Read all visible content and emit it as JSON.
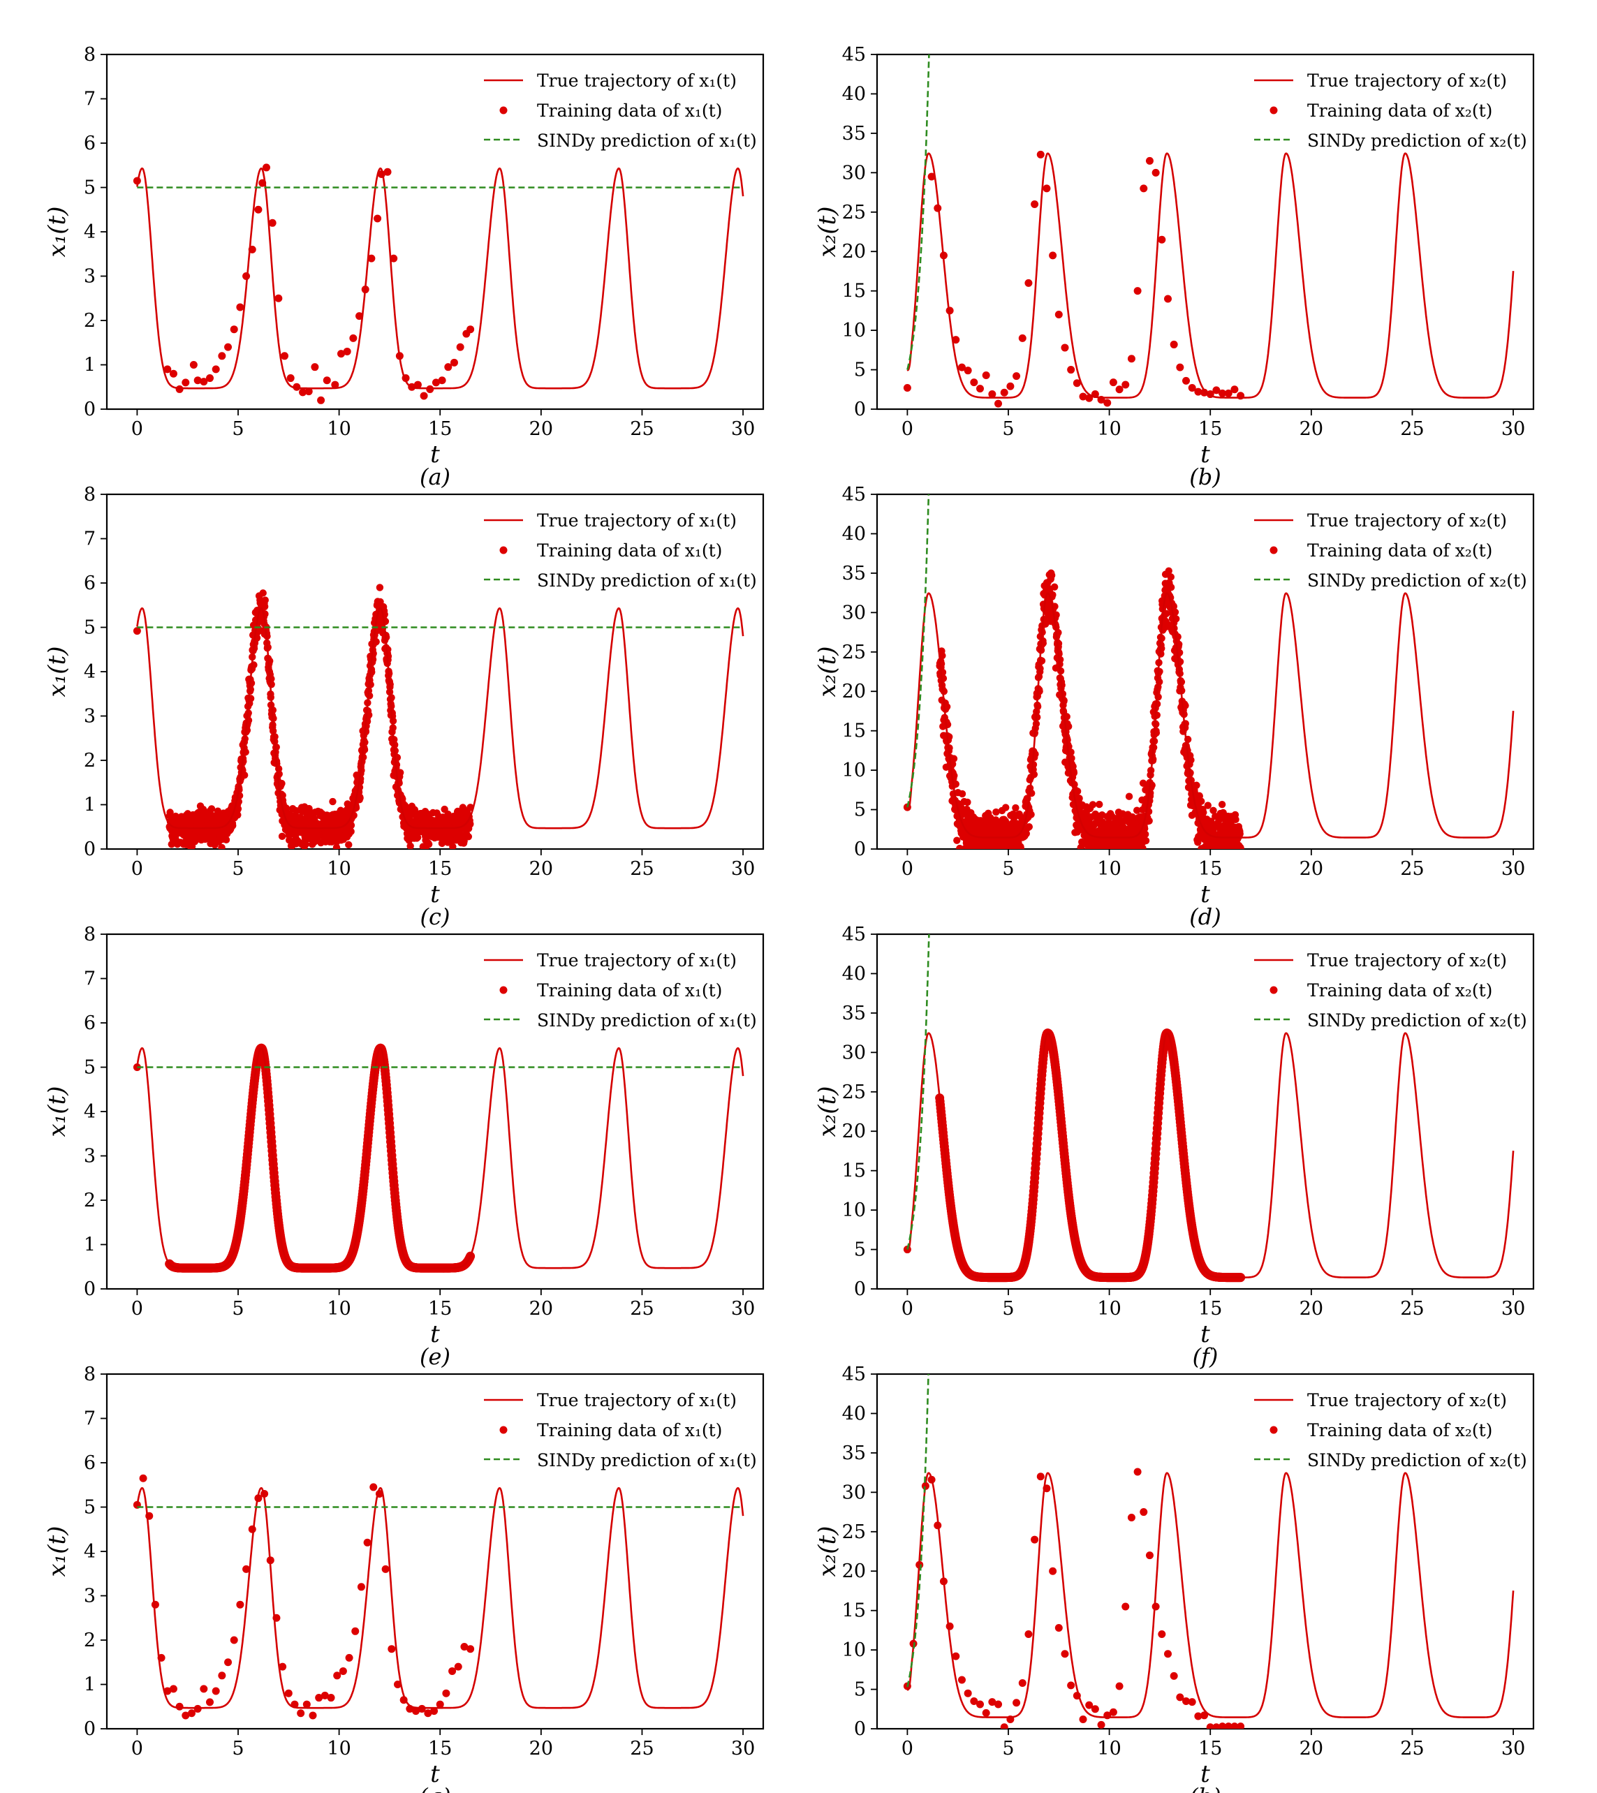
{
  "figure": {
    "subplot_rows": 4,
    "subplot_cols": 2
  },
  "colors": {
    "true": "#d40000",
    "train": "#dd0000",
    "sindy": "#2e8b1f",
    "axis": "#000000"
  },
  "chart_data": [
    {
      "id": "a",
      "caption": "(a)",
      "type": "line",
      "var": "x1",
      "xlabel": "t",
      "ylabel": "x₁(t)",
      "xlim": [
        -1.5,
        31
      ],
      "ylim": [
        0,
        8
      ],
      "xticks": [
        0,
        5,
        10,
        15,
        20,
        25,
        30
      ],
      "yticks": [
        0,
        1,
        2,
        3,
        4,
        5,
        6,
        7,
        8
      ],
      "legend": [
        "True trajectory of x₁(t)",
        "Training data of x₁(t)",
        "SINDy prediction of x₁(t)"
      ],
      "train_style": "sparse",
      "sindy": {
        "kind": "flat",
        "value": 5.0
      },
      "training_data": {
        "t": [
          0,
          1.5,
          1.8,
          2.1,
          2.4,
          2.8,
          3.0,
          3.3,
          3.6,
          3.9,
          4.2,
          4.5,
          4.8,
          5.1,
          5.4,
          5.7,
          6.0,
          6.2,
          6.4,
          6.7,
          7.0,
          7.3,
          7.6,
          7.9,
          8.2,
          8.5,
          8.8,
          9.1,
          9.4,
          9.8,
          10.1,
          10.4,
          10.7,
          11.0,
          11.3,
          11.6,
          11.9,
          12.1,
          12.4,
          12.7,
          13.0,
          13.3,
          13.6,
          13.9,
          14.2,
          14.5,
          14.8,
          15.1,
          15.4,
          15.7,
          16.0,
          16.3,
          16.5
        ],
        "y": [
          5.15,
          0.9,
          0.8,
          0.45,
          0.6,
          1.0,
          0.65,
          0.62,
          0.7,
          0.9,
          1.2,
          1.4,
          1.8,
          2.3,
          3.0,
          3.6,
          4.5,
          5.1,
          5.45,
          4.2,
          2.5,
          1.2,
          0.7,
          0.5,
          0.38,
          0.4,
          0.95,
          0.2,
          0.65,
          0.55,
          1.25,
          1.3,
          1.6,
          2.1,
          2.7,
          3.4,
          4.3,
          5.3,
          5.35,
          3.4,
          1.2,
          0.7,
          0.5,
          0.55,
          0.3,
          0.45,
          0.6,
          0.65,
          0.95,
          1.05,
          1.4,
          1.7,
          1.8
        ]
      }
    },
    {
      "id": "b",
      "caption": "(b)",
      "type": "line",
      "var": "x2",
      "xlabel": "t",
      "ylabel": "x₂(t)",
      "xlim": [
        -1.5,
        31
      ],
      "ylim": [
        0,
        45
      ],
      "xticks": [
        0,
        5,
        10,
        15,
        20,
        25,
        30
      ],
      "yticks": [
        0,
        5,
        10,
        15,
        20,
        25,
        30,
        35,
        40,
        45
      ],
      "legend": [
        "True trajectory of x₂(t)",
        "Training data of x₂(t)",
        "SINDy prediction of x₂(t)"
      ],
      "train_style": "sparse",
      "sindy": {
        "kind": "exp",
        "y0": 5.0,
        "rate": 2.05
      },
      "training_data": {
        "t": [
          0,
          1.2,
          1.5,
          1.8,
          2.1,
          2.4,
          2.7,
          3.0,
          3.3,
          3.6,
          3.9,
          4.2,
          4.5,
          4.8,
          5.1,
          5.4,
          5.7,
          6.0,
          6.3,
          6.6,
          6.9,
          7.2,
          7.5,
          7.8,
          8.1,
          8.4,
          8.7,
          9.0,
          9.3,
          9.6,
          9.9,
          10.2,
          10.5,
          10.8,
          11.1,
          11.4,
          11.7,
          12.0,
          12.3,
          12.6,
          12.9,
          13.2,
          13.5,
          13.8,
          14.1,
          14.4,
          14.7,
          15.0,
          15.3,
          15.6,
          15.9,
          16.2,
          16.5
        ],
        "y": [
          2.7,
          29.5,
          25.5,
          19.5,
          12.5,
          8.8,
          5.3,
          4.9,
          3.4,
          2.6,
          4.3,
          1.9,
          0.7,
          2.1,
          2.9,
          4.2,
          9.0,
          16.0,
          26.0,
          32.3,
          28.0,
          19.5,
          12.0,
          7.8,
          5.0,
          3.3,
          1.6,
          1.4,
          1.9,
          1.2,
          0.8,
          3.4,
          2.5,
          3.1,
          6.4,
          15.0,
          28.0,
          31.5,
          30.0,
          21.5,
          14.0,
          8.2,
          5.3,
          3.6,
          2.7,
          2.2,
          2.1,
          1.9,
          2.4,
          2.0,
          2.0,
          2.5,
          1.7
        ]
      }
    },
    {
      "id": "c",
      "caption": "(c)",
      "type": "line",
      "var": "x1",
      "xlabel": "t",
      "ylabel": "x₁(t)",
      "xlim": [
        -1.5,
        31
      ],
      "ylim": [
        0,
        8
      ],
      "xticks": [
        0,
        5,
        10,
        15,
        20,
        25,
        30
      ],
      "yticks": [
        0,
        1,
        2,
        3,
        4,
        5,
        6,
        7,
        8
      ],
      "legend": [
        "True trajectory of x₁(t)",
        "Training data of x₁(t)",
        "SINDy prediction of x₁(t)"
      ],
      "train_style": "dense-noisy",
      "sindy": {
        "kind": "flat",
        "value": 5.0
      },
      "training_data": {
        "t_start": 1.6,
        "t_end": 16.5,
        "noise": 0.2,
        "start_point": [
          0,
          4.92
        ]
      }
    },
    {
      "id": "d",
      "caption": "(d)",
      "type": "line",
      "var": "x2",
      "xlabel": "t",
      "ylabel": "x₂(t)",
      "xlim": [
        -1.5,
        31
      ],
      "ylim": [
        0,
        45
      ],
      "xticks": [
        0,
        5,
        10,
        15,
        20,
        25,
        30
      ],
      "yticks": [
        0,
        5,
        10,
        15,
        20,
        25,
        30,
        35,
        40,
        45
      ],
      "legend": [
        "True trajectory of x₂(t)",
        "Training data of x₂(t)",
        "SINDy prediction of x₂(t)"
      ],
      "train_style": "dense-noisy",
      "sindy": {
        "kind": "exp",
        "y0": 5.3,
        "rate": 2.03
      },
      "training_data": {
        "t_start": 1.6,
        "t_end": 16.5,
        "noise": 1.6,
        "start_point": [
          0,
          5.3
        ]
      }
    },
    {
      "id": "e",
      "caption": "(e)",
      "type": "line",
      "var": "x1",
      "xlabel": "t",
      "ylabel": "x₁(t)",
      "xlim": [
        -1.5,
        31
      ],
      "ylim": [
        0,
        8
      ],
      "xticks": [
        0,
        5,
        10,
        15,
        20,
        25,
        30
      ],
      "yticks": [
        0,
        1,
        2,
        3,
        4,
        5,
        6,
        7,
        8
      ],
      "legend": [
        "True trajectory of x₁(t)",
        "Training data of x₁(t)",
        "SINDy prediction of x₁(t)"
      ],
      "train_style": "dense-clean",
      "sindy": {
        "kind": "flat",
        "value": 5.0
      },
      "training_data": {
        "t_start": 1.6,
        "t_end": 16.5,
        "noise": 0,
        "start_point": [
          0,
          5.0
        ]
      }
    },
    {
      "id": "f",
      "caption": "(f)",
      "type": "line",
      "var": "x2",
      "xlabel": "t",
      "ylabel": "x₂(t)",
      "xlim": [
        -1.5,
        31
      ],
      "ylim": [
        0,
        45
      ],
      "xticks": [
        0,
        5,
        10,
        15,
        20,
        25,
        30
      ],
      "yticks": [
        0,
        5,
        10,
        15,
        20,
        25,
        30,
        35,
        40,
        45
      ],
      "legend": [
        "True trajectory of x₂(t)",
        "Training data of x₂(t)",
        "SINDy prediction of x₂(t)"
      ],
      "train_style": "dense-clean",
      "sindy": {
        "kind": "exp",
        "y0": 5.0,
        "rate": 2.05
      },
      "training_data": {
        "t_start": 1.6,
        "t_end": 16.5,
        "noise": 0,
        "start_point": [
          0,
          5.0
        ]
      }
    },
    {
      "id": "g",
      "caption": "(g)",
      "type": "line",
      "var": "x1",
      "xlabel": "t",
      "ylabel": "x₁(t)",
      "xlim": [
        -1.5,
        31
      ],
      "ylim": [
        0,
        8
      ],
      "xticks": [
        0,
        5,
        10,
        15,
        20,
        25,
        30
      ],
      "yticks": [
        0,
        1,
        2,
        3,
        4,
        5,
        6,
        7,
        8
      ],
      "legend": [
        "True trajectory of x₁(t)",
        "Training data of x₁(t)",
        "SINDy prediction of x₁(t)"
      ],
      "train_style": "sparse",
      "sindy": {
        "kind": "flat",
        "value": 5.0
      },
      "training_data": {
        "t": [
          0,
          0.3,
          0.6,
          0.9,
          1.2,
          1.5,
          1.8,
          2.1,
          2.4,
          2.7,
          3.0,
          3.3,
          3.6,
          3.9,
          4.2,
          4.5,
          4.8,
          5.1,
          5.4,
          5.7,
          6.0,
          6.3,
          6.6,
          6.9,
          7.2,
          7.5,
          7.8,
          8.1,
          8.4,
          8.7,
          9.0,
          9.3,
          9.6,
          9.9,
          10.2,
          10.5,
          10.8,
          11.1,
          11.4,
          11.7,
          12.0,
          12.3,
          12.6,
          12.9,
          13.2,
          13.5,
          13.8,
          14.1,
          14.4,
          14.7,
          15.0,
          15.3,
          15.6,
          15.9,
          16.2,
          16.5
        ],
        "y": [
          5.05,
          5.65,
          4.8,
          2.8,
          1.6,
          0.85,
          0.9,
          0.5,
          0.3,
          0.35,
          0.45,
          0.9,
          0.6,
          0.85,
          1.2,
          1.5,
          2.0,
          2.8,
          3.6,
          4.5,
          5.2,
          5.3,
          3.8,
          2.5,
          1.4,
          0.8,
          0.55,
          0.35,
          0.55,
          0.3,
          0.7,
          0.75,
          0.7,
          1.2,
          1.3,
          1.6,
          2.2,
          3.2,
          4.2,
          5.45,
          5.3,
          3.6,
          1.8,
          1.0,
          0.65,
          0.45,
          0.4,
          0.45,
          0.35,
          0.4,
          0.55,
          0.8,
          1.3,
          1.4,
          1.85,
          1.8
        ]
      }
    },
    {
      "id": "h",
      "caption": "(h)",
      "type": "line",
      "var": "x2",
      "xlabel": "t",
      "ylabel": "x₂(t)",
      "xlim": [
        -1.5,
        31
      ],
      "ylim": [
        0,
        45
      ],
      "xticks": [
        0,
        5,
        10,
        15,
        20,
        25,
        30
      ],
      "yticks": [
        0,
        5,
        10,
        15,
        20,
        25,
        30,
        35,
        40,
        45
      ],
      "legend": [
        "True trajectory of x₂(t)",
        "Training data of x₂(t)",
        "SINDy prediction of x₂(t)"
      ],
      "train_style": "sparse",
      "sindy": {
        "kind": "exp",
        "y0": 5.3,
        "rate": 2.05
      },
      "training_data": {
        "t": [
          0,
          0.3,
          0.6,
          0.9,
          1.2,
          1.5,
          1.8,
          2.1,
          2.4,
          2.7,
          3.0,
          3.3,
          3.6,
          3.9,
          4.2,
          4.5,
          4.8,
          5.1,
          5.4,
          5.7,
          6.0,
          6.3,
          6.6,
          6.9,
          7.2,
          7.5,
          7.8,
          8.1,
          8.4,
          8.7,
          9.0,
          9.3,
          9.6,
          9.9,
          10.2,
          10.5,
          10.8,
          11.1,
          11.4,
          11.7,
          12.0,
          12.3,
          12.6,
          12.9,
          13.2,
          13.5,
          13.8,
          14.1,
          14.4,
          14.7,
          15.0,
          15.3,
          15.6,
          15.9,
          16.2,
          16.5
        ],
        "y": [
          5.4,
          10.8,
          20.8,
          30.8,
          31.6,
          25.8,
          18.7,
          13.0,
          9.2,
          6.2,
          4.5,
          3.5,
          3.1,
          2.0,
          3.4,
          3.1,
          0.2,
          1.2,
          3.3,
          5.8,
          12.0,
          24.0,
          32.0,
          30.5,
          20.0,
          12.8,
          9.5,
          5.5,
          4.2,
          1.2,
          3.0,
          2.5,
          0.5,
          1.7,
          2.1,
          5.4,
          15.5,
          26.8,
          32.6,
          27.5,
          22.0,
          15.5,
          12.0,
          9.5,
          6.7,
          4.0,
          3.5,
          3.4,
          1.6,
          1.7,
          0.2,
          0.2,
          0.3,
          0.3,
          0.3,
          0.3
        ]
      }
    }
  ]
}
